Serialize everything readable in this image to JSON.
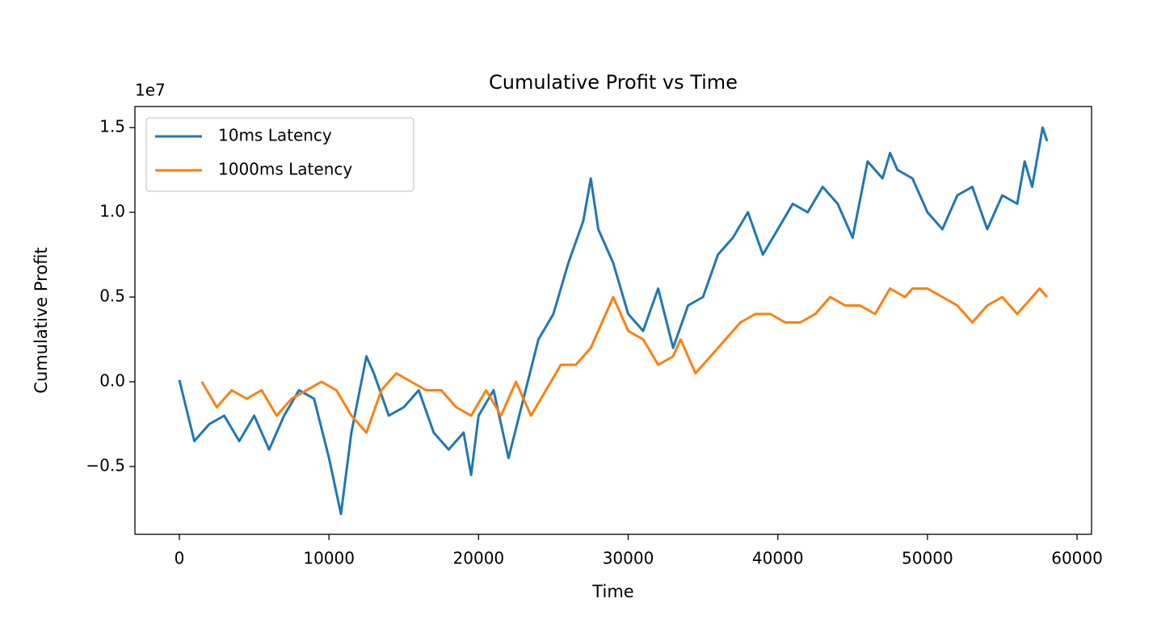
{
  "chart_data": {
    "type": "line",
    "title": "Cumulative Profit vs Time",
    "xlabel": "Time",
    "ylabel": "Cumulative Profit",
    "y_offset_label": "1e7",
    "xlim": [
      -2970,
      60970
    ],
    "ylim": [
      -9000000,
      16240000
    ],
    "xticks": [
      0,
      10000,
      20000,
      30000,
      40000,
      50000,
      60000
    ],
    "yticks": [
      {
        "value": -5000000,
        "label": "−0.5"
      },
      {
        "value": 0,
        "label": "0.0"
      },
      {
        "value": 5000000,
        "label": "0.5"
      },
      {
        "value": 10000000,
        "label": "1.0"
      },
      {
        "value": 15000000,
        "label": "1.5"
      }
    ],
    "legend": "upper left",
    "series": [
      {
        "name": "10ms Latency",
        "color": "#1f77b4",
        "x": [
          0,
          1000,
          2000,
          3000,
          4000,
          5000,
          6000,
          7000,
          8000,
          9000,
          10000,
          10800,
          11500,
          12500,
          13000,
          14000,
          15000,
          16000,
          17000,
          18000,
          19000,
          19500,
          20000,
          21000,
          22000,
          23000,
          24000,
          25000,
          26000,
          27000,
          27500,
          28000,
          29000,
          30000,
          31000,
          32000,
          33000,
          34000,
          35000,
          36000,
          37000,
          38000,
          39000,
          40000,
          41000,
          42000,
          43000,
          44000,
          45000,
          46000,
          47000,
          47500,
          48000,
          49000,
          50000,
          51000,
          52000,
          53000,
          54000,
          55000,
          56000,
          56500,
          57000,
          57700,
          58000
        ],
        "values": [
          100000,
          -3500000,
          -2500000,
          -2000000,
          -3500000,
          -2000000,
          -4000000,
          -2000000,
          -500000,
          -1000000,
          -4500000,
          -7800000,
          -3000000,
          1500000,
          500000,
          -2000000,
          -1500000,
          -500000,
          -3000000,
          -4000000,
          -3000000,
          -5500000,
          -2000000,
          -500000,
          -4500000,
          -1000000,
          2500000,
          4000000,
          7000000,
          9500000,
          12000000,
          9000000,
          7000000,
          4000000,
          3000000,
          5500000,
          2000000,
          4500000,
          5000000,
          7500000,
          8500000,
          10000000,
          7500000,
          9000000,
          10500000,
          10000000,
          11500000,
          10500000,
          8500000,
          13000000,
          12000000,
          13500000,
          12500000,
          12000000,
          10000000,
          9000000,
          11000000,
          11500000,
          9000000,
          11000000,
          10500000,
          13000000,
          11500000,
          15000000,
          14200000
        ]
      },
      {
        "name": "1000ms Latency",
        "color": "#ff7f0e",
        "x": [
          1500,
          2500,
          3500,
          4500,
          5500,
          6500,
          7500,
          8500,
          9500,
          10500,
          11500,
          12500,
          13500,
          14500,
          15500,
          16500,
          17500,
          18500,
          19500,
          20500,
          21500,
          22500,
          23500,
          24500,
          25500,
          26500,
          27500,
          28500,
          29000,
          30000,
          31000,
          32000,
          33000,
          33500,
          34500,
          35500,
          36500,
          37500,
          38500,
          39500,
          40500,
          41500,
          42500,
          43500,
          44500,
          45500,
          46500,
          47500,
          48500,
          49000,
          50000,
          51000,
          52000,
          53000,
          54000,
          55000,
          56000,
          57000,
          57500,
          58000
        ],
        "values": [
          0,
          -1500000,
          -500000,
          -1000000,
          -500000,
          -2000000,
          -1000000,
          -500000,
          0,
          -500000,
          -2000000,
          -3000000,
          -500000,
          500000,
          0,
          -500000,
          -500000,
          -1500000,
          -2000000,
          -500000,
          -2000000,
          0,
          -2000000,
          -500000,
          1000000,
          1000000,
          2000000,
          4000000,
          5000000,
          3000000,
          2500000,
          1000000,
          1500000,
          2500000,
          500000,
          1500000,
          2500000,
          3500000,
          4000000,
          4000000,
          3500000,
          3500000,
          4000000,
          5000000,
          4500000,
          4500000,
          4000000,
          5500000,
          5000000,
          5500000,
          5500000,
          5000000,
          4500000,
          3500000,
          4500000,
          5000000,
          4000000,
          5000000,
          5500000,
          5000000
        ]
      }
    ]
  }
}
